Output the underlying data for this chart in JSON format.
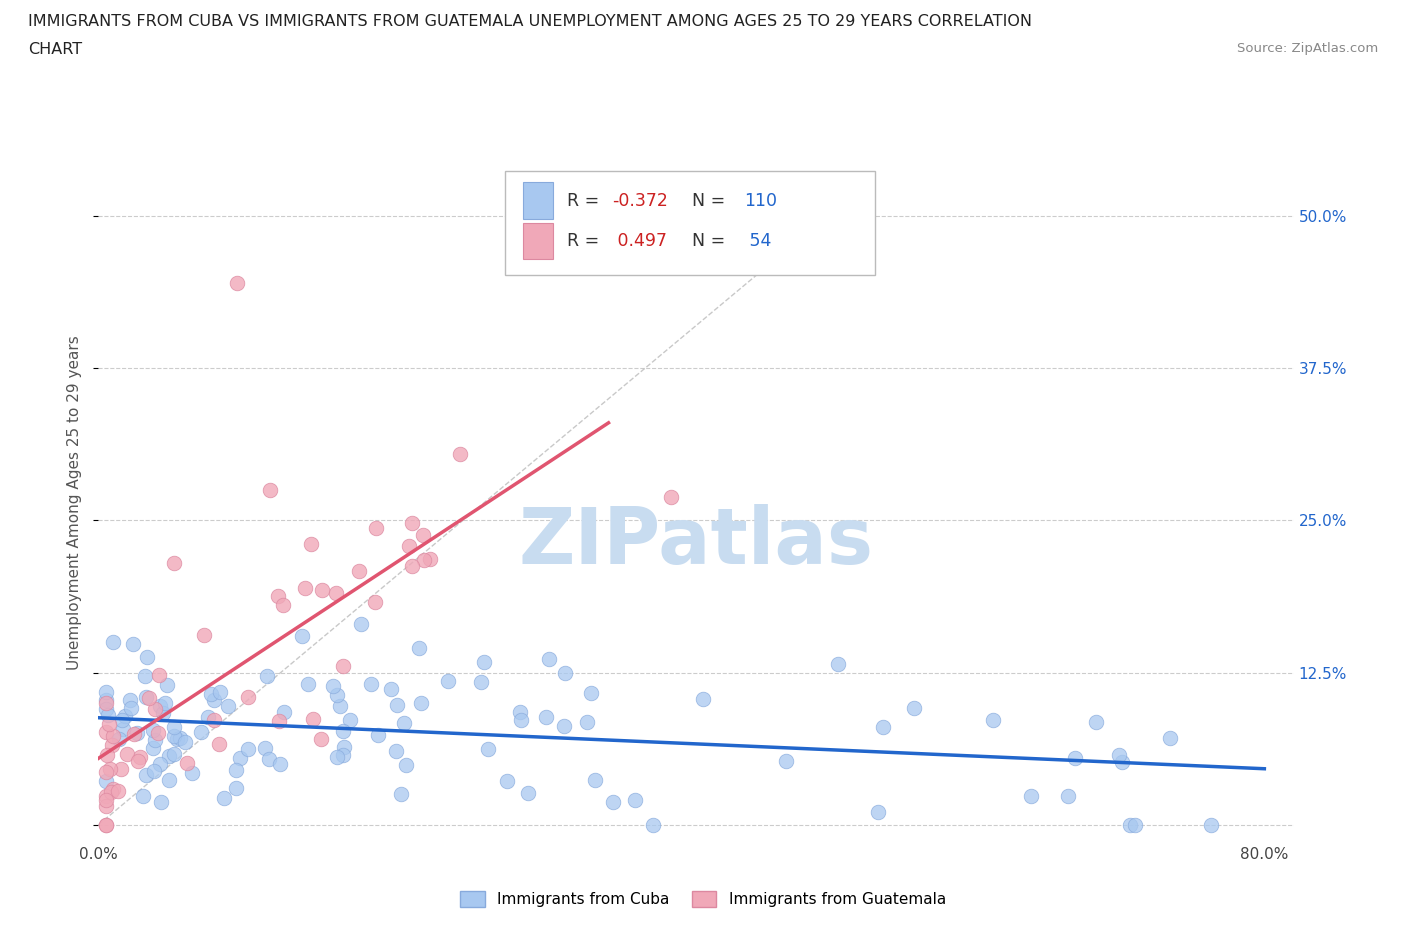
{
  "title_line1": "IMMIGRANTS FROM CUBA VS IMMIGRANTS FROM GUATEMALA UNEMPLOYMENT AMONG AGES 25 TO 29 YEARS CORRELATION",
  "title_line2": "CHART",
  "source": "Source: ZipAtlas.com",
  "ylabel": "Unemployment Among Ages 25 to 29 years",
  "xlim": [
    0.0,
    0.82
  ],
  "ylim": [
    -0.01,
    0.54
  ],
  "ytick_positions": [
    0.0,
    0.125,
    0.25,
    0.375,
    0.5
  ],
  "ytick_labels": [
    "",
    "12.5%",
    "25.0%",
    "37.5%",
    "50.0%"
  ],
  "xtick_positions": [
    0.0,
    0.2,
    0.4,
    0.6,
    0.8
  ],
  "xtick_labels": [
    "0.0%",
    "",
    "",
    "",
    "80.0%"
  ],
  "grid_color": "#cccccc",
  "background_color": "#ffffff",
  "cuba_color": "#A8C8F0",
  "cuba_edge_color": "#88AADC",
  "guatemala_color": "#F0A8B8",
  "guatemala_edge_color": "#DC88A0",
  "cuba_line_color": "#2266CC",
  "guatemala_line_color": "#E05570",
  "diagonal_color": "#bbbbbb",
  "legend_R_color": "#CC2222",
  "legend_N_color": "#2266CC",
  "legend_text_color": "#333333",
  "title_color": "#222222",
  "source_color": "#888888",
  "ylabel_color": "#555555",
  "right_tick_color": "#2266CC",
  "watermark_color": "#C8DCF0",
  "cuba_R": -0.372,
  "cuba_N": 110,
  "guatemala_R": 0.497,
  "guatemala_N": 54
}
